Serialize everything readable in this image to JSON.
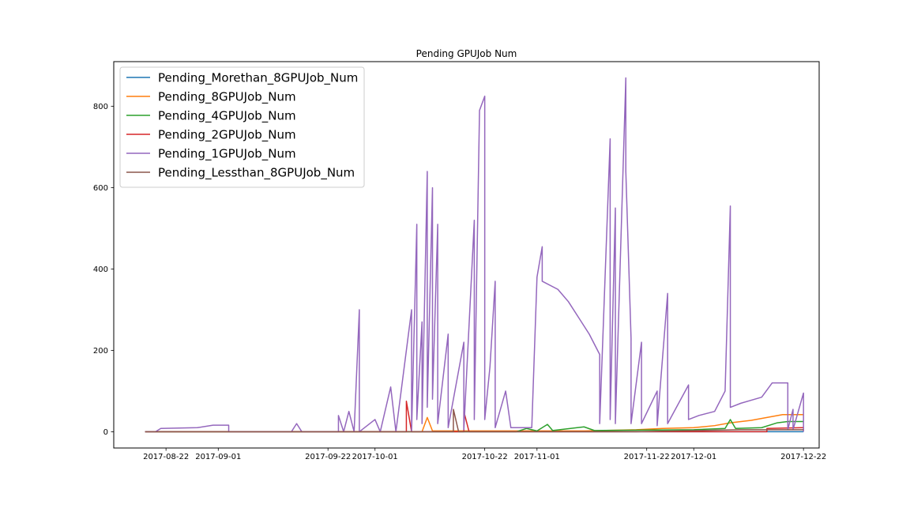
{
  "chart_data": {
    "type": "line",
    "title": "Pending GPUJob Num",
    "xlabel": "",
    "ylabel": "",
    "x_axis": "date",
    "xlim": [
      "2017-08-12",
      "2017-12-25"
    ],
    "ylim": [
      -40,
      910
    ],
    "x_ticks": [
      "2017-08-22",
      "2017-09-01",
      "2017-09-22",
      "2017-10-01",
      "2017-10-22",
      "2017-11-01",
      "2017-11-22",
      "2017-12-01",
      "2017-12-22"
    ],
    "y_ticks": [
      0,
      200,
      400,
      600,
      800
    ],
    "legend_position": "top-left",
    "grid": false,
    "series": [
      {
        "name": "Pending_Morethan_8GPUJob_Num",
        "color": "#1f77b4",
        "points": [
          [
            "2017-08-18",
            0
          ],
          [
            "2017-12-22",
            0
          ]
        ]
      },
      {
        "name": "Pending_8GPUJob_Num",
        "color": "#ff7f0e",
        "points": [
          [
            "2017-08-18",
            0
          ],
          [
            "2017-10-10",
            0
          ],
          [
            "2017-10-11",
            35
          ],
          [
            "2017-10-12",
            2
          ],
          [
            "2017-11-10",
            2
          ],
          [
            "2017-11-20",
            5
          ],
          [
            "2017-11-25",
            8
          ],
          [
            "2017-12-01",
            10
          ],
          [
            "2017-12-05",
            15
          ],
          [
            "2017-12-08",
            22
          ],
          [
            "2017-12-12",
            28
          ],
          [
            "2017-12-15",
            35
          ],
          [
            "2017-12-18",
            42
          ],
          [
            "2017-12-22",
            42
          ]
        ]
      },
      {
        "name": "Pending_4GPUJob_Num",
        "color": "#2ca02c",
        "points": [
          [
            "2017-08-18",
            0
          ],
          [
            "2017-10-28",
            0
          ],
          [
            "2017-10-30",
            8
          ],
          [
            "2017-11-01",
            2
          ],
          [
            "2017-11-03",
            18
          ],
          [
            "2017-11-04",
            3
          ],
          [
            "2017-11-10",
            12
          ],
          [
            "2017-11-12",
            3
          ],
          [
            "2017-12-01",
            5
          ],
          [
            "2017-12-07",
            8
          ],
          [
            "2017-12-08",
            30
          ],
          [
            "2017-12-09",
            8
          ],
          [
            "2017-12-14",
            10
          ],
          [
            "2017-12-17",
            22
          ],
          [
            "2017-12-19",
            25
          ],
          [
            "2017-12-22",
            25
          ]
        ]
      },
      {
        "name": "Pending_2GPUJob_Num",
        "color": "#d62728",
        "points": [
          [
            "2017-08-18",
            0
          ],
          [
            "2017-10-07",
            0
          ],
          [
            "2017-10-07",
            75
          ],
          [
            "2017-10-08",
            0
          ],
          [
            "2017-10-18",
            0
          ],
          [
            "2017-10-18",
            50
          ],
          [
            "2017-10-19",
            0
          ],
          [
            "2017-12-15",
            0
          ],
          [
            "2017-12-15",
            8
          ],
          [
            "2017-12-22",
            10
          ]
        ]
      },
      {
        "name": "Pending_1GPUJob_Num",
        "color": "#9467bd",
        "points": [
          [
            "2017-08-18",
            0
          ],
          [
            "2017-08-20",
            0
          ],
          [
            "2017-08-21",
            8
          ],
          [
            "2017-08-28",
            10
          ],
          [
            "2017-08-31",
            16
          ],
          [
            "2017-09-03",
            16
          ],
          [
            "2017-09-03",
            0
          ],
          [
            "2017-09-15",
            0
          ],
          [
            "2017-09-16",
            20
          ],
          [
            "2017-09-17",
            0
          ],
          [
            "2017-09-24",
            0
          ],
          [
            "2017-09-24",
            40
          ],
          [
            "2017-09-25",
            0
          ],
          [
            "2017-09-26",
            50
          ],
          [
            "2017-09-27",
            0
          ],
          [
            "2017-09-28",
            300
          ],
          [
            "2017-09-28",
            0
          ],
          [
            "2017-10-01",
            30
          ],
          [
            "2017-10-02",
            0
          ],
          [
            "2017-10-04",
            110
          ],
          [
            "2017-10-05",
            0
          ],
          [
            "2017-10-08",
            300
          ],
          [
            "2017-10-08",
            0
          ],
          [
            "2017-10-09",
            510
          ],
          [
            "2017-10-09",
            30
          ],
          [
            "2017-10-10",
            270
          ],
          [
            "2017-10-10",
            20
          ],
          [
            "2017-10-11",
            640
          ],
          [
            "2017-10-11",
            60
          ],
          [
            "2017-10-12",
            600
          ],
          [
            "2017-10-12",
            80
          ],
          [
            "2017-10-13",
            510
          ],
          [
            "2017-10-13",
            20
          ],
          [
            "2017-10-15",
            240
          ],
          [
            "2017-10-15",
            10
          ],
          [
            "2017-10-18",
            220
          ],
          [
            "2017-10-18",
            5
          ],
          [
            "2017-10-20",
            520
          ],
          [
            "2017-10-20",
            30
          ],
          [
            "2017-10-21",
            790
          ],
          [
            "2017-10-22",
            825
          ],
          [
            "2017-10-22",
            30
          ],
          [
            "2017-10-23",
            160
          ],
          [
            "2017-10-24",
            370
          ],
          [
            "2017-10-24",
            10
          ],
          [
            "2017-10-26",
            100
          ],
          [
            "2017-10-27",
            10
          ],
          [
            "2017-10-31",
            10
          ],
          [
            "2017-11-01",
            380
          ],
          [
            "2017-11-02",
            455
          ],
          [
            "2017-11-02",
            370
          ],
          [
            "2017-11-05",
            350
          ],
          [
            "2017-11-07",
            320
          ],
          [
            "2017-11-09",
            280
          ],
          [
            "2017-11-11",
            240
          ],
          [
            "2017-11-13",
            190
          ],
          [
            "2017-11-13",
            20
          ],
          [
            "2017-11-15",
            720
          ],
          [
            "2017-11-15",
            30
          ],
          [
            "2017-11-16",
            550
          ],
          [
            "2017-11-16",
            20
          ],
          [
            "2017-11-18",
            870
          ],
          [
            "2017-11-18",
            640
          ],
          [
            "2017-11-19",
            230
          ],
          [
            "2017-11-19",
            20
          ],
          [
            "2017-11-21",
            220
          ],
          [
            "2017-11-21",
            20
          ],
          [
            "2017-11-24",
            100
          ],
          [
            "2017-11-24",
            15
          ],
          [
            "2017-11-26",
            340
          ],
          [
            "2017-11-26",
            20
          ],
          [
            "2017-11-30",
            115
          ],
          [
            "2017-11-30",
            30
          ],
          [
            "2017-12-02",
            40
          ],
          [
            "2017-12-05",
            50
          ],
          [
            "2017-12-07",
            100
          ],
          [
            "2017-12-08",
            555
          ],
          [
            "2017-12-08",
            60
          ],
          [
            "2017-12-10",
            70
          ],
          [
            "2017-12-14",
            85
          ],
          [
            "2017-12-16",
            120
          ],
          [
            "2017-12-19",
            120
          ],
          [
            "2017-12-19",
            5
          ],
          [
            "2017-12-20",
            55
          ],
          [
            "2017-12-20",
            5
          ],
          [
            "2017-12-22",
            95
          ],
          [
            "2017-12-22",
            0
          ]
        ]
      },
      {
        "name": "Pending_Lessthan_8GPUJob_Num",
        "color": "#8c564b",
        "points": [
          [
            "2017-08-18",
            0
          ],
          [
            "2017-10-16",
            0
          ],
          [
            "2017-10-16",
            55
          ],
          [
            "2017-10-17",
            0
          ],
          [
            "2017-11-20",
            0
          ],
          [
            "2017-12-10",
            5
          ],
          [
            "2017-12-22",
            5
          ]
        ]
      }
    ]
  }
}
